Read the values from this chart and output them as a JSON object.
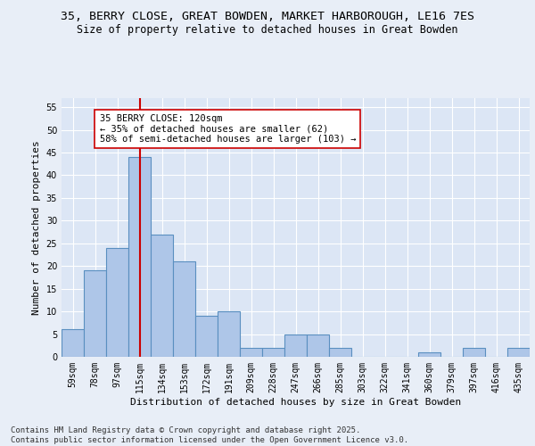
{
  "title1": "35, BERRY CLOSE, GREAT BOWDEN, MARKET HARBOROUGH, LE16 7ES",
  "title2": "Size of property relative to detached houses in Great Bowden",
  "xlabel": "Distribution of detached houses by size in Great Bowden",
  "ylabel": "Number of detached properties",
  "categories": [
    "59sqm",
    "78sqm",
    "97sqm",
    "115sqm",
    "134sqm",
    "153sqm",
    "172sqm",
    "191sqm",
    "209sqm",
    "228sqm",
    "247sqm",
    "266sqm",
    "285sqm",
    "303sqm",
    "322sqm",
    "341sqm",
    "360sqm",
    "379sqm",
    "397sqm",
    "416sqm",
    "435sqm"
  ],
  "values": [
    6,
    19,
    24,
    44,
    27,
    21,
    9,
    10,
    2,
    2,
    5,
    5,
    2,
    0,
    0,
    0,
    1,
    0,
    2,
    0,
    2
  ],
  "bar_color": "#aec6e8",
  "bar_edge_color": "#5a8fc0",
  "bar_linewidth": 0.8,
  "vline_x": 3,
  "vline_color": "#cc0000",
  "vline_linewidth": 1.5,
  "annotation_text": "35 BERRY CLOSE: 120sqm\n← 35% of detached houses are smaller (62)\n58% of semi-detached houses are larger (103) →",
  "annotation_box_color": "#ffffff",
  "annotation_box_edge": "#cc0000",
  "ylim": [
    0,
    57
  ],
  "yticks": [
    0,
    5,
    10,
    15,
    20,
    25,
    30,
    35,
    40,
    45,
    50,
    55
  ],
  "background_color": "#e8eef7",
  "plot_bg_color": "#dce6f5",
  "footer": "Contains HM Land Registry data © Crown copyright and database right 2025.\nContains public sector information licensed under the Open Government Licence v3.0.",
  "title1_fontsize": 9.5,
  "title2_fontsize": 8.5,
  "axis_label_fontsize": 8,
  "tick_fontsize": 7,
  "annotation_fontsize": 7.5,
  "footer_fontsize": 6.5
}
